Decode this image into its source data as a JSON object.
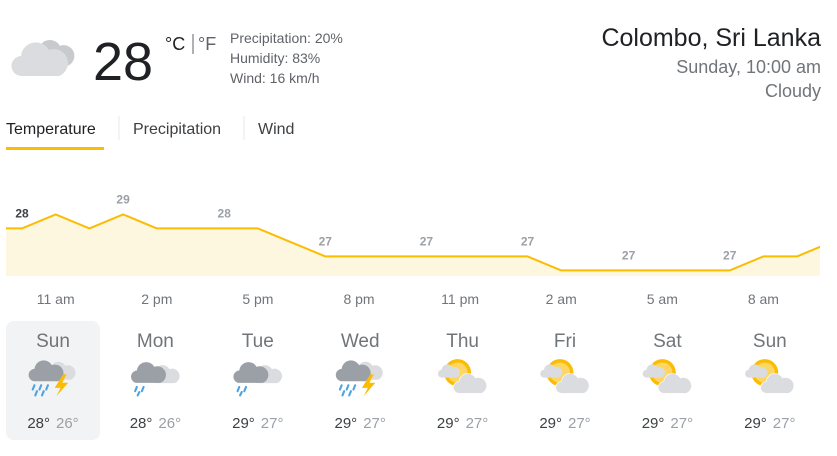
{
  "current": {
    "temperature": "28",
    "unit_c": "°C",
    "unit_f": "°F",
    "details": [
      "Precipitation: 20%",
      "Humidity: 83%",
      "Wind: 16 km/h"
    ]
  },
  "location": {
    "place": "Colombo, Sri Lanka",
    "time": "Sunday, 10:00 am",
    "condition": "Cloudy"
  },
  "tabs": [
    "Temperature",
    "Precipitation",
    "Wind"
  ],
  "chart_data": {
    "type": "line",
    "categories": [
      null,
      "11 am",
      null,
      null,
      "2 pm",
      null,
      null,
      "5 pm",
      null,
      null,
      "8 pm",
      null,
      null,
      "11 pm",
      null,
      null,
      "2 am",
      null,
      null,
      "5 am",
      null,
      null,
      "8 am",
      null,
      null
    ],
    "series": [
      {
        "color": "#fbbc04",
        "values": [
          28,
          28.5,
          28,
          28.5,
          28,
          28,
          28,
          28,
          27.5,
          27,
          27,
          27,
          27,
          27,
          27,
          27,
          26.5,
          26.5,
          26.5,
          26.5,
          26.5,
          26.5,
          27,
          27,
          27.5
        ],
        "value_labels": [
          "28",
          null,
          null,
          "29",
          null,
          null,
          "28",
          null,
          null,
          "27",
          null,
          null,
          "27",
          null,
          null,
          "27",
          null,
          null,
          "27",
          null,
          null,
          "27",
          null,
          null,
          null
        ]
      }
    ],
    "ylim": [
      26.3,
      29.8
    ]
  },
  "forecast": [
    {
      "day": "Sun",
      "high": "28°",
      "low": "26°"
    },
    {
      "day": "Mon",
      "high": "28°",
      "low": "26°"
    },
    {
      "day": "Tue",
      "high": "29°",
      "low": "27°"
    },
    {
      "day": "Wed",
      "high": "29°",
      "low": "27°"
    },
    {
      "day": "Thu",
      "high": "29°",
      "low": "27°"
    },
    {
      "day": "Fri",
      "high": "29°",
      "low": "27°"
    },
    {
      "day": "Sat",
      "high": "29°",
      "low": "27°"
    },
    {
      "day": "Sun",
      "high": "29°",
      "low": "27°"
    }
  ]
}
